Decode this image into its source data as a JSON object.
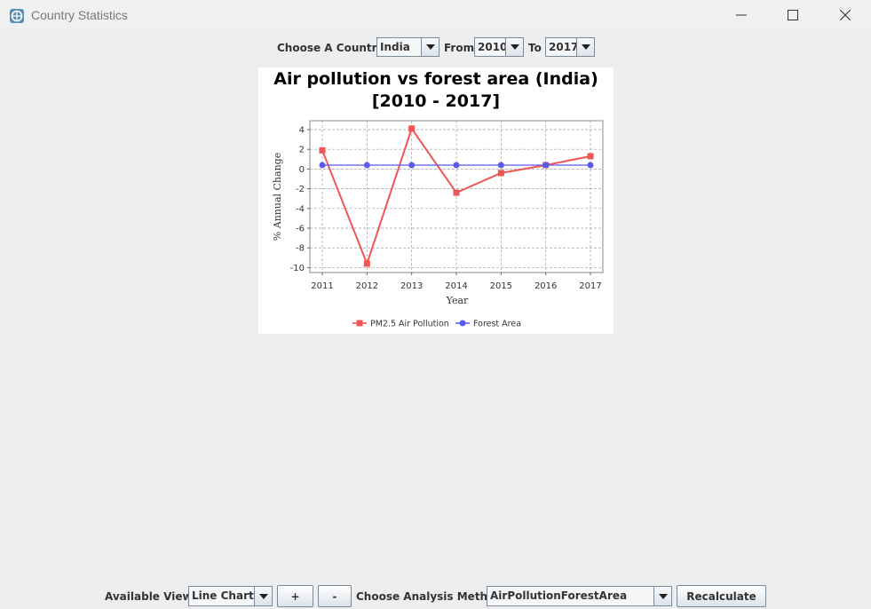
{
  "window": {
    "title": "Country Statistics"
  },
  "top_bar": {
    "country_label": "Choose A Country:",
    "country_value": "India",
    "from_label": "From",
    "from_value": "2010",
    "to_label": "To",
    "to_value": "2017"
  },
  "bottom_bar": {
    "views_label": "Available Views",
    "views_value": "Line Chart",
    "add_label": "+",
    "remove_label": "-",
    "method_label": "Choose Analysis Method",
    "method_value": "AirPollutionForestArea",
    "recalculate_label": "Recalculate"
  },
  "chart_data": {
    "type": "line",
    "title": "Air pollution vs forest area (India)",
    "subtitle": "[2010 - 2017]",
    "xlabel": "Year",
    "ylabel": "% Annual Change",
    "categories": [
      "2011",
      "2012",
      "2013",
      "2014",
      "2015",
      "2016",
      "2017"
    ],
    "yticks": [
      4,
      2,
      0,
      -2,
      -4,
      -6,
      -8,
      -10
    ],
    "ylim": [
      -10.5,
      4.9
    ],
    "grid": true,
    "legend_position": "bottom",
    "series": [
      {
        "name": "PM2.5 Air Pollution",
        "values": [
          1.9,
          -9.6,
          4.1,
          -2.4,
          -0.4,
          0.4,
          1.3
        ],
        "color": "#f05555",
        "marker": "square"
      },
      {
        "name": "Forest Area",
        "values": [
          0.4,
          0.4,
          0.4,
          0.4,
          0.4,
          0.4,
          0.4
        ],
        "color": "#5a5aee",
        "marker": "circle"
      }
    ]
  }
}
